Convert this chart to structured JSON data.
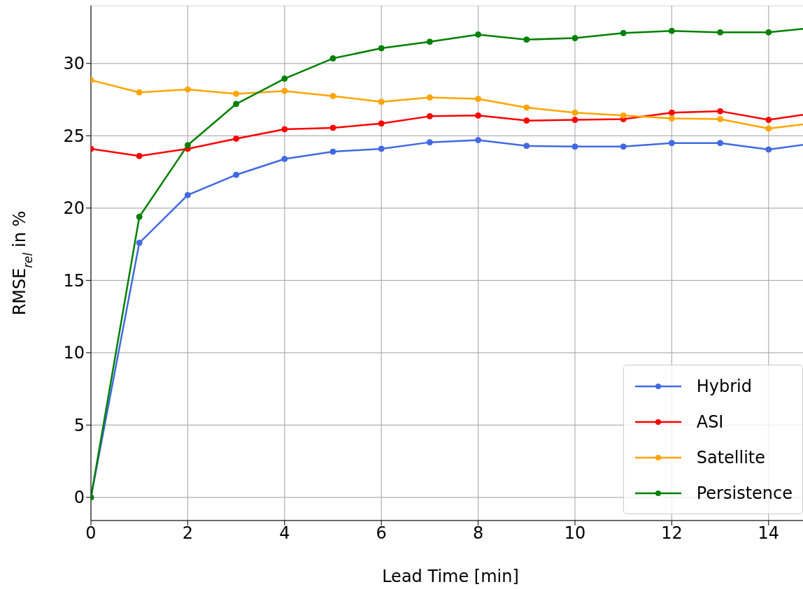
{
  "chart_data": {
    "type": "line",
    "xlabel": "Lead Time [min]",
    "ylabel": "RMSE$_{rel}$ in %",
    "x": [
      0,
      1,
      2,
      3,
      4,
      5,
      6,
      7,
      8,
      9,
      10,
      11,
      12,
      13,
      14,
      15
    ],
    "series": [
      {
        "name": "Hybrid",
        "color": "#4169e1",
        "values": [
          0,
          17.6,
          20.9,
          22.3,
          23.4,
          23.9,
          24.1,
          24.55,
          24.7,
          24.3,
          24.25,
          24.25,
          24.5,
          24.5,
          24.05,
          24.5
        ]
      },
      {
        "name": "ASI",
        "color": "#ff0000",
        "values": [
          24.1,
          23.6,
          24.1,
          24.8,
          25.45,
          25.55,
          25.85,
          26.35,
          26.4,
          26.05,
          26.1,
          26.15,
          26.6,
          26.7,
          26.1,
          26.6
        ]
      },
      {
        "name": "Satellite",
        "color": "#ffa500",
        "values": [
          28.85,
          28.0,
          28.2,
          27.9,
          28.1,
          27.75,
          27.35,
          27.65,
          27.55,
          26.95,
          26.6,
          26.4,
          26.2,
          26.15,
          25.5,
          25.9
        ]
      },
      {
        "name": "Persistence",
        "color": "#008000",
        "values": [
          0,
          19.4,
          24.35,
          27.2,
          28.95,
          30.35,
          31.05,
          31.5,
          32.0,
          31.65,
          31.75,
          32.1,
          32.25,
          32.15,
          32.15,
          32.5
        ]
      }
    ],
    "xlim": [
      0,
      15
    ],
    "xticks": [
      0,
      2,
      4,
      6,
      8,
      10,
      12,
      14
    ],
    "ylim": [
      -1.6,
      34
    ],
    "yticks": [
      0,
      5,
      10,
      15,
      20,
      25,
      30
    ],
    "grid": true,
    "legend": "bottom right",
    "marker": "circle",
    "line_style": "solid"
  }
}
